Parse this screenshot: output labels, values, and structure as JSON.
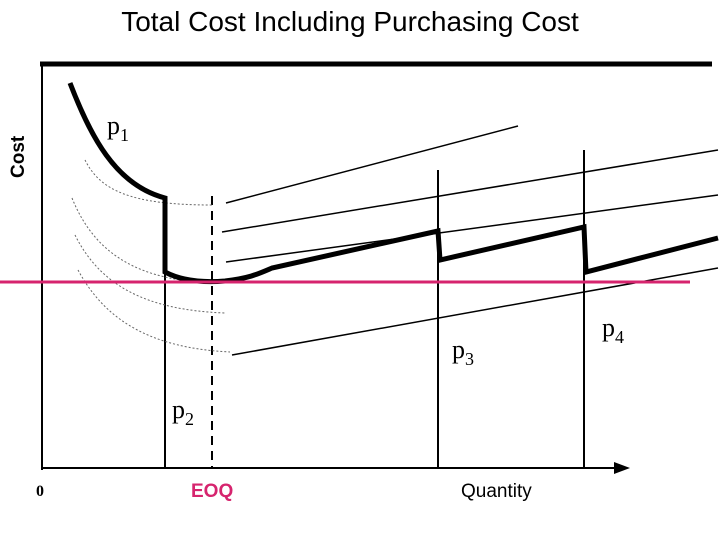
{
  "title": "Total Cost Including Purchasing Cost",
  "ylabel": "Cost",
  "origin_label": "0",
  "eoq_label": "EOQ",
  "quantity_label": "Quantity",
  "price_labels": {
    "p1": {
      "base": "p",
      "sub": "1"
    },
    "p2": {
      "base": "p",
      "sub": "2"
    },
    "p3": {
      "base": "p",
      "sub": "3"
    },
    "p4": {
      "base": "p",
      "sub": "4"
    }
  },
  "colors": {
    "axis": "#000000",
    "title_rule": "#000000",
    "min_cost_line": "#d6246e",
    "eoq_label": "#d6246e"
  }
}
